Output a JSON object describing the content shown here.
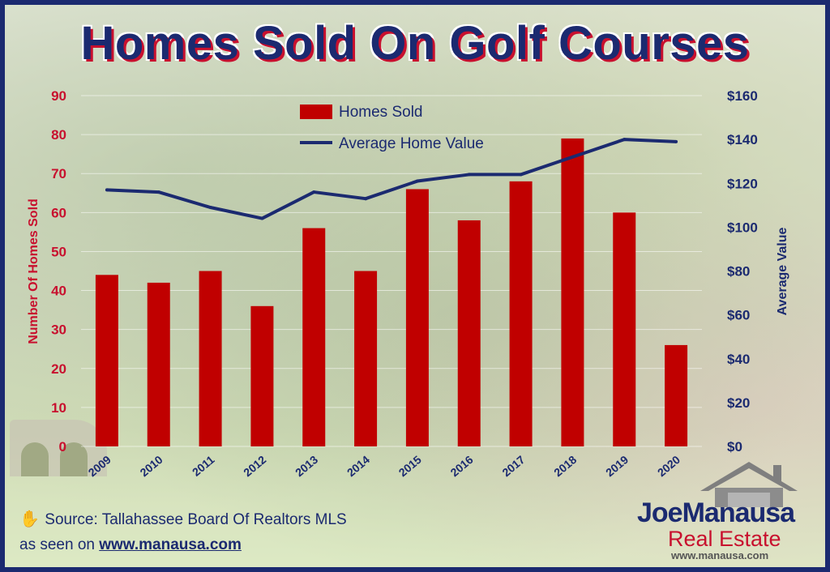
{
  "title": "Homes Sold On Golf Courses",
  "chart_data": {
    "type": "bar",
    "categories": [
      "2009",
      "2010",
      "2011",
      "2012",
      "2013",
      "2014",
      "2015",
      "2016",
      "2017",
      "2018",
      "2019",
      "2020"
    ],
    "series": [
      {
        "name": "Homes Sold",
        "type": "bar",
        "axis": "left",
        "values": [
          44,
          42,
          45,
          36,
          56,
          45,
          66,
          58,
          68,
          79,
          60,
          26
        ]
      },
      {
        "name": "Average Home Value",
        "type": "line",
        "axis": "right",
        "values": [
          117,
          116,
          109,
          104,
          116,
          113,
          121,
          124,
          124,
          132,
          140,
          139
        ]
      }
    ],
    "ylabel": "Number Of Homes Sold",
    "y2label": "Average Value",
    "ylim": [
      0,
      90
    ],
    "y2lim": [
      0,
      160
    ],
    "yticks": [
      "0",
      "10",
      "20",
      "30",
      "40",
      "50",
      "60",
      "70",
      "80",
      "90"
    ],
    "y2ticks": [
      "$0",
      "$20",
      "$40",
      "$60",
      "$80",
      "$100",
      "$120",
      "$140",
      "$160"
    ],
    "legend": "top-center",
    "grid": true,
    "colors": {
      "bar": "#c00000",
      "line": "#1b2a70"
    }
  },
  "footer": {
    "source": "Source: Tallahassee Board Of Realtors MLS",
    "seen_prefix": "as seen on",
    "seen_url": "www.manausa.com"
  },
  "logo": {
    "brand_first": "Joe",
    "brand_second": "Manausa",
    "sub": "Real Estate",
    "url": "www.manausa.com"
  },
  "icons": {
    "source_icon": "hand-icon",
    "logo_icon": "house-icon"
  }
}
